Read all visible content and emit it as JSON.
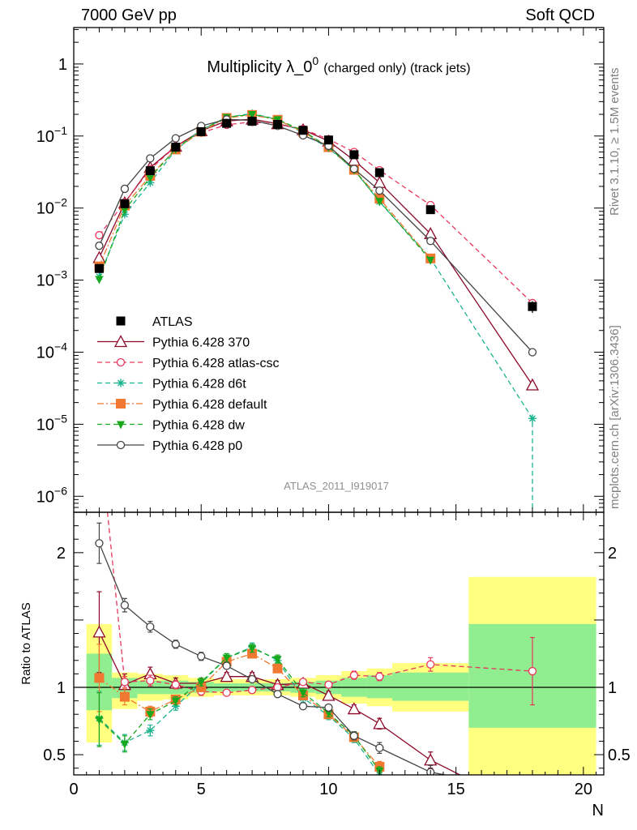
{
  "header": {
    "left": "7000 GeV pp",
    "right": "Soft QCD"
  },
  "side_labels": {
    "rivet": "Rivet 3.1.10, ≥ 1.5M events",
    "mcplots": "mcplots.cern.ch [arXiv:1306.3436]"
  },
  "chart_data": {
    "type": "line",
    "title_main": "Multiplicity λ_0",
    "title_sup": "0",
    "title_sub": "(charged only) (track jets)",
    "analysis_id": "ATLAS_2011_I919017",
    "xlabel": "N",
    "ylabel_ratio": "Ratio to ATLAS",
    "xlim": [
      0,
      20.8
    ],
    "ylim_main": [
      6e-07,
      3.2
    ],
    "ylim_ratio": [
      0.35,
      2.3
    ],
    "log_y_main": true,
    "grid": false,
    "legend_position": "left, lower part of the main panel",
    "x_ticks": [
      0,
      5,
      10,
      15,
      20
    ],
    "main_y_ticks": [
      {
        "value": 1,
        "label": "1"
      },
      {
        "value": 0.1,
        "label": "10",
        "sup": "−1"
      },
      {
        "value": 0.01,
        "label": "10",
        "sup": "−2"
      },
      {
        "value": 0.001,
        "label": "10",
        "sup": "−3"
      },
      {
        "value": 0.0001,
        "label": "10",
        "sup": "−4"
      },
      {
        "value": 1e-05,
        "label": "10",
        "sup": "−5"
      },
      {
        "value": 1e-06,
        "label": "10",
        "sup": "−6"
      }
    ],
    "ratio_y_ticks": [
      {
        "value": 0.5,
        "label": "0.5"
      },
      {
        "value": 1,
        "label": "1"
      },
      {
        "value": 2,
        "label": "2"
      }
    ],
    "data": {
      "name": "ATLAS",
      "x": [
        1,
        2,
        3,
        4,
        5,
        6,
        7,
        8,
        9,
        10,
        11,
        12,
        14,
        18
      ],
      "y": [
        0.00145,
        0.0115,
        0.033,
        0.07,
        0.115,
        0.15,
        0.16,
        0.145,
        0.12,
        0.088,
        0.055,
        0.031,
        0.0095,
        0.00043
      ],
      "y_err": [
        0.00015,
        0.0008,
        0.002,
        0.004,
        0.005,
        0.006,
        0.006,
        0.005,
        0.005,
        0.004,
        0.003,
        0.002,
        0.0008,
        8e-05
      ]
    },
    "bands": [
      {
        "x0": 0.5,
        "x1": 1.5,
        "yellow": [
          0.59,
          1.47
        ],
        "green": [
          0.83,
          1.25
        ]
      },
      {
        "x0": 1.5,
        "x1": 2.5,
        "yellow": [
          0.84,
          1.11
        ],
        "green": [
          0.92,
          1.07
        ]
      },
      {
        "x0": 2.5,
        "x1": 3.5,
        "yellow": [
          0.9,
          1.1
        ],
        "green": [
          0.95,
          1.05
        ]
      },
      {
        "x0": 3.5,
        "x1": 4.5,
        "yellow": [
          0.91,
          1.09
        ],
        "green": [
          0.95,
          1.05
        ]
      },
      {
        "x0": 4.5,
        "x1": 5.5,
        "yellow": [
          0.93,
          1.07
        ],
        "green": [
          0.96,
          1.04
        ]
      },
      {
        "x0": 5.5,
        "x1": 6.5,
        "yellow": [
          0.94,
          1.06
        ],
        "green": [
          0.97,
          1.03
        ]
      },
      {
        "x0": 6.5,
        "x1": 7.5,
        "yellow": [
          0.94,
          1.06
        ],
        "green": [
          0.97,
          1.03
        ]
      },
      {
        "x0": 7.5,
        "x1": 8.5,
        "yellow": [
          0.94,
          1.06
        ],
        "green": [
          0.97,
          1.03
        ]
      },
      {
        "x0": 8.5,
        "x1": 9.5,
        "yellow": [
          0.93,
          1.07
        ],
        "green": [
          0.96,
          1.04
        ]
      },
      {
        "x0": 9.5,
        "x1": 10.5,
        "yellow": [
          0.91,
          1.09
        ],
        "green": [
          0.95,
          1.05
        ]
      },
      {
        "x0": 10.5,
        "x1": 11.5,
        "yellow": [
          0.88,
          1.12
        ],
        "green": [
          0.93,
          1.07
        ]
      },
      {
        "x0": 11.5,
        "x1": 12.5,
        "yellow": [
          0.86,
          1.14
        ],
        "green": [
          0.92,
          1.09
        ]
      },
      {
        "x0": 12.5,
        "x1": 15.5,
        "yellow": [
          0.82,
          1.18
        ],
        "green": [
          0.9,
          1.11
        ]
      },
      {
        "x0": 15.5,
        "x1": 20.5,
        "yellow": [
          0.35,
          1.82
        ],
        "green": [
          0.7,
          1.47
        ]
      }
    ],
    "series": [
      {
        "name": "Pythia 6.428 370",
        "color": "#8b0a2a",
        "dash": "",
        "marker": "triangle-open",
        "x": [
          1,
          2,
          3,
          4,
          5,
          6,
          7,
          8,
          9,
          10,
          11,
          12,
          14,
          18
        ],
        "y": [
          0.00205,
          0.0118,
          0.0365,
          0.072,
          0.118,
          0.162,
          0.171,
          0.148,
          0.122,
          0.085,
          0.046,
          0.0226,
          0.0044,
          3.5e-05
        ],
        "ratio": [
          1.41,
          1.02,
          1.1,
          1.03,
          1.03,
          1.08,
          1.08,
          1.02,
          1.03,
          0.94,
          0.84,
          0.73,
          0.46,
          0.08
        ],
        "ratio_err": [
          0.3,
          0.08,
          0.05,
          0.04,
          0.03,
          0.03,
          0.03,
          0.03,
          0.03,
          0.03,
          0.03,
          0.04,
          0.06,
          0.0
        ]
      },
      {
        "name": "Pythia 6.428 atlas-csc",
        "color": "#e8365c",
        "dash": "6,4",
        "marker": "circle-open",
        "x": [
          1,
          2,
          3,
          4,
          5,
          6,
          7,
          8,
          9,
          10,
          11,
          12,
          14,
          18
        ],
        "y": [
          0.0042,
          0.012,
          0.0345,
          0.072,
          0.111,
          0.143,
          0.157,
          0.145,
          0.125,
          0.09,
          0.06,
          0.0335,
          0.011,
          0.00048
        ],
        "ratio": [
          2.9,
          1.04,
          1.05,
          1.02,
          0.97,
          0.96,
          0.98,
          1.0,
          1.04,
          1.02,
          1.09,
          1.08,
          1.17,
          1.12
        ],
        "ratio_err": [
          0.2,
          0.04,
          0.04,
          0.03,
          0.03,
          0.02,
          0.02,
          0.02,
          0.02,
          0.02,
          0.03,
          0.03,
          0.05,
          0.25
        ]
      },
      {
        "name": "Pythia 6.428 d6t",
        "color": "#1bb38f",
        "dash": "6,4",
        "marker": "star",
        "x": [
          1,
          2,
          3,
          4,
          5,
          6,
          7,
          8,
          9,
          10,
          11,
          12,
          14,
          18,
          18
        ],
        "y": [
          0.00112,
          0.0082,
          0.0225,
          0.064,
          0.121,
          0.182,
          0.205,
          0.17,
          0.11,
          0.068,
          0.034,
          0.0122,
          0.002,
          1.2e-05,
          6e-07
        ],
        "ratio": [
          0.77,
          0.59,
          0.68,
          0.86,
          1.03,
          1.22,
          1.3,
          1.2,
          0.92,
          0.79,
          0.62,
          0.35
        ],
        "ratio_err": [
          0.2,
          0.06,
          0.04,
          0.03,
          0.03,
          0.03,
          0.03,
          0.03,
          0.03,
          0.03,
          0.03,
          0.03
        ]
      },
      {
        "name": "Pythia 6.428 default",
        "color": "#f07830",
        "dash": "8,3,2,3",
        "marker": "square",
        "x": [
          1,
          2,
          3,
          4,
          5,
          6,
          7,
          8,
          9,
          10,
          11,
          12,
          14
        ],
        "y": [
          0.00155,
          0.0108,
          0.028,
          0.065,
          0.115,
          0.178,
          0.196,
          0.168,
          0.114,
          0.07,
          0.034,
          0.0135,
          0.002
        ],
        "ratio": [
          1.07,
          0.93,
          0.82,
          0.91,
          1.0,
          1.19,
          1.25,
          1.14,
          0.94,
          0.8,
          0.63,
          0.41
        ],
        "ratio_err": [
          0.25,
          0.06,
          0.04,
          0.03,
          0.03,
          0.03,
          0.03,
          0.03,
          0.03,
          0.03,
          0.03,
          0.04
        ]
      },
      {
        "name": "Pythia 6.428 dw",
        "color": "#18a81e",
        "dash": "6,4",
        "marker": "triangle-down",
        "x": [
          1,
          2,
          3,
          4,
          5,
          6,
          7,
          8,
          9,
          10,
          11,
          12,
          14
        ],
        "y": [
          0.00103,
          0.0094,
          0.0265,
          0.066,
          0.121,
          0.182,
          0.2,
          0.17,
          0.118,
          0.07,
          0.034,
          0.0125,
          0.0019
        ],
        "ratio": [
          0.76,
          0.58,
          0.8,
          0.9,
          1.04,
          1.22,
          1.29,
          1.21,
          0.96,
          0.81,
          0.64,
          0.38
        ],
        "ratio_err": [
          0.2,
          0.06,
          0.04,
          0.03,
          0.03,
          0.03,
          0.03,
          0.03,
          0.03,
          0.03,
          0.03,
          0.03
        ]
      },
      {
        "name": "Pythia 6.428 p0",
        "color": "#444444",
        "dash": "",
        "marker": "circle-open",
        "x": [
          1,
          2,
          3,
          4,
          5,
          6,
          7,
          8,
          9,
          10,
          11,
          12,
          14,
          18
        ],
        "y": [
          0.003,
          0.0185,
          0.049,
          0.093,
          0.138,
          0.17,
          0.165,
          0.138,
          0.102,
          0.073,
          0.035,
          0.0175,
          0.0035,
          0.0001
        ],
        "ratio": [
          2.07,
          1.61,
          1.45,
          1.32,
          1.23,
          1.16,
          1.06,
          0.95,
          0.86,
          0.85,
          0.64,
          0.55,
          0.37,
          0.23
        ],
        "ratio_err": [
          0.15,
          0.05,
          0.04,
          0.03,
          0.03,
          0.02,
          0.02,
          0.02,
          0.02,
          0.02,
          0.03,
          0.04,
          0.05,
          0.04
        ]
      }
    ]
  }
}
